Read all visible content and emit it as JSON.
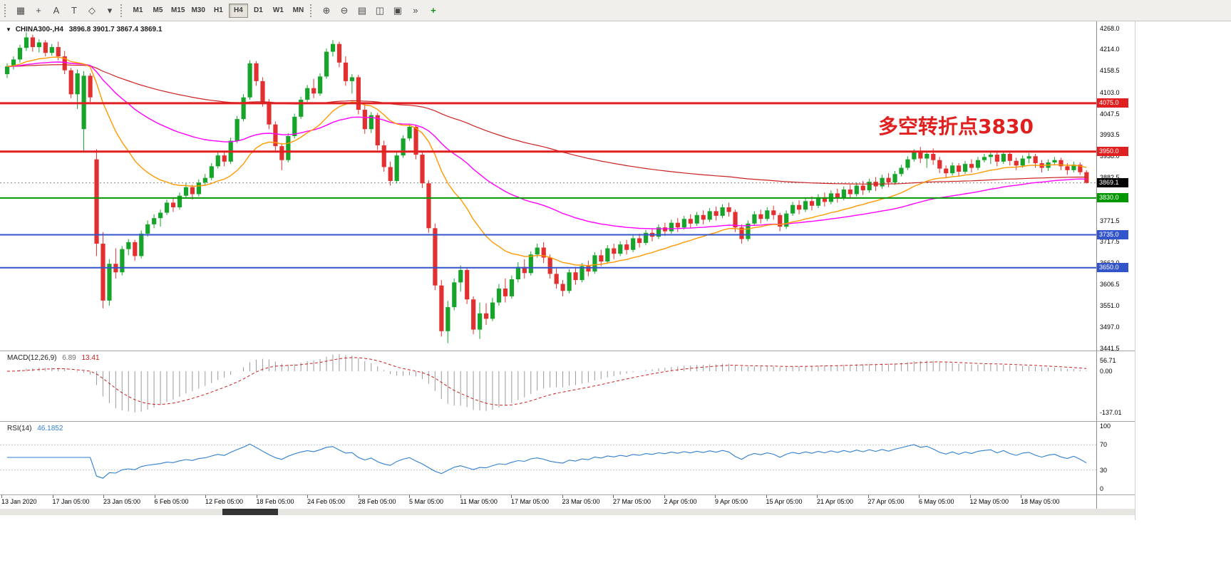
{
  "toolbar": {
    "left_icons": [
      {
        "name": "charts-menu-icon",
        "glyph": "▦"
      },
      {
        "name": "crosshair-icon",
        "glyph": "+"
      },
      {
        "name": "text-label-icon",
        "glyph": "A"
      },
      {
        "name": "text-tool-icon",
        "glyph": "T"
      },
      {
        "name": "shapes-icon",
        "glyph": "◇"
      },
      {
        "name": "shapes-dropdown-icon",
        "glyph": "▾"
      }
    ],
    "timeframes": [
      "M1",
      "M5",
      "M15",
      "M30",
      "H1",
      "H4",
      "D1",
      "W1",
      "MN"
    ],
    "active_timeframe": "H4",
    "right_icons": [
      {
        "name": "zoom-in-icon",
        "glyph": "⊕"
      },
      {
        "name": "zoom-out-icon",
        "glyph": "⊖"
      },
      {
        "name": "tile-windows-icon",
        "glyph": "▤"
      },
      {
        "name": "cascade-windows-icon",
        "glyph": "◫"
      },
      {
        "name": "arrange-windows-icon",
        "glyph": "▣"
      },
      {
        "name": "auto-scroll-icon",
        "glyph": "»"
      },
      {
        "name": "indicators-add-icon",
        "glyph": "+",
        "color": "#168f16"
      }
    ]
  },
  "window": {
    "dropdown_glyph": "▼",
    "symbol_title": "CHINA300-,H4",
    "ohlc_text": "3896.8 3901.7 3867.4 3869.1"
  },
  "annotation": {
    "text": "多空转折点3830",
    "color": "#e01f1f"
  },
  "macd": {
    "label": "MACD(12,26,9)",
    "value_main": "6.89",
    "value_signal": "13.41",
    "axis_labels": [
      "56.71",
      "0.00",
      "-137.01"
    ],
    "histogram_color": "#9a9a9a",
    "signal_color": "#cc2020"
  },
  "rsi": {
    "label": "RSI(14)",
    "value": "46.1852",
    "period": 14,
    "axis_labels": [
      "100",
      "70",
      "30",
      "0"
    ],
    "levels": [
      70,
      30
    ],
    "line_color": "#2f7fd0"
  },
  "chart_data": {
    "type": "candlestick",
    "symbol": "CHINA300-",
    "timeframe": "H4",
    "last_ohlc": {
      "open": 3896.8,
      "high": 3901.7,
      "low": 3867.4,
      "close": 3869.1
    },
    "price_min": 3441.5,
    "price_max": 4268.0,
    "price_axis_labels": [
      "4268.0",
      "4214.0",
      "4158.5",
      "4103.0",
      "4047.5",
      "3993.5",
      "3938.0",
      "3882.5",
      "3827.0",
      "3771.5",
      "3717.5",
      "3662.0",
      "3606.5",
      "3551.0",
      "3497.0",
      "3441.5"
    ],
    "time_labels": [
      "13 Jan 2020",
      "17 Jan 05:00",
      "23 Jan 05:00",
      "6 Feb 05:00",
      "12 Feb 05:00",
      "18 Feb 05:00",
      "24 Feb 05:00",
      "28 Feb 05:00",
      "5 Mar 05:00",
      "11 Mar 05:00",
      "17 Mar 05:00",
      "23 Mar 05:00",
      "27 Mar 05:00",
      "2 Apr 05:00",
      "9 Apr 05:00",
      "15 Apr 05:00",
      "21 Apr 05:00",
      "27 Apr 05:00",
      "6 May 05:00",
      "12 May 05:00",
      "18 May 05:00"
    ],
    "up_color": "#17a42a",
    "down_color": "#e23030",
    "levels": [
      {
        "price": 4075.0,
        "label": "4075.0",
        "color": "#e02020",
        "width": 3
      },
      {
        "price": 3950.0,
        "label": "3950.0",
        "color": "#e02020",
        "width": 3
      },
      {
        "price": 3830.0,
        "label": "3830.0",
        "color": "#009600",
        "width": 2
      },
      {
        "price": 3735.0,
        "label": "3735.0",
        "color": "#3355cc",
        "width": 2
      },
      {
        "price": 3650.0,
        "label": "3650.0",
        "color": "#3355cc",
        "width": 2
      }
    ],
    "current_price": {
      "value": 3869.1,
      "label": "3869.1",
      "badge_color": "#000000"
    },
    "moving_averages": [
      {
        "name": "ma-slow-red",
        "period": 150,
        "color": "#cc2222",
        "width": 1.2
      },
      {
        "name": "ma-mid-magenta",
        "period": 55,
        "color": "#ff00ff",
        "width": 1.4
      },
      {
        "name": "ma-fast-orange",
        "period": 21,
        "color": "#ff9900",
        "width": 1.4
      }
    ],
    "candles": [
      [
        4150,
        4178,
        4140,
        4170
      ],
      [
        4170,
        4196,
        4162,
        4188
      ],
      [
        4188,
        4226,
        4180,
        4218
      ],
      [
        4218,
        4258,
        4210,
        4245
      ],
      [
        4245,
        4252,
        4208,
        4220
      ],
      [
        4220,
        4240,
        4206,
        4232
      ],
      [
        4232,
        4238,
        4196,
        4205
      ],
      [
        4205,
        4228,
        4198,
        4220
      ],
      [
        4220,
        4234,
        4186,
        4196
      ],
      [
        4196,
        4210,
        4150,
        4160
      ],
      [
        4160,
        4166,
        4088,
        4098
      ],
      [
        4098,
        4162,
        4060,
        4152
      ],
      [
        4008,
        4158,
        3952,
        4146
      ],
      [
        4146,
        4152,
        4078,
        4090
      ],
      [
        3930,
        3956,
        3680,
        3712
      ],
      [
        3712,
        3742,
        3545,
        3565
      ],
      [
        3565,
        3672,
        3552,
        3660
      ],
      [
        3660,
        3700,
        3622,
        3638
      ],
      [
        3638,
        3706,
        3630,
        3698
      ],
      [
        3698,
        3724,
        3682,
        3716
      ],
      [
        3716,
        3722,
        3668,
        3680
      ],
      [
        3680,
        3746,
        3674,
        3738
      ],
      [
        3738,
        3772,
        3730,
        3762
      ],
      [
        3762,
        3788,
        3752,
        3778
      ],
      [
        3778,
        3800,
        3756,
        3792
      ],
      [
        3792,
        3826,
        3786,
        3818
      ],
      [
        3818,
        3832,
        3794,
        3806
      ],
      [
        3806,
        3844,
        3800,
        3836
      ],
      [
        3836,
        3868,
        3830,
        3858
      ],
      [
        3858,
        3864,
        3826,
        3840
      ],
      [
        3840,
        3878,
        3834,
        3870
      ],
      [
        3870,
        3892,
        3862,
        3882
      ],
      [
        3882,
        3920,
        3876,
        3912
      ],
      [
        3912,
        3948,
        3906,
        3940
      ],
      [
        3940,
        3952,
        3912,
        3924
      ],
      [
        3924,
        3986,
        3918,
        3978
      ],
      [
        3978,
        4042,
        3972,
        4034
      ],
      [
        4034,
        4098,
        4028,
        4090
      ],
      [
        4090,
        4186,
        4084,
        4178
      ],
      [
        4178,
        4184,
        4120,
        4132
      ],
      [
        4132,
        4142,
        4066,
        4078
      ],
      [
        4078,
        4086,
        4008,
        4020
      ],
      [
        4020,
        4028,
        3952,
        3964
      ],
      [
        3964,
        3972,
        3902,
        3928
      ],
      [
        3928,
        3998,
        3922,
        3990
      ],
      [
        3990,
        4048,
        3984,
        4040
      ],
      [
        4040,
        4092,
        4034,
        4084
      ],
      [
        4084,
        4122,
        4078,
        4114
      ],
      [
        4114,
        4138,
        4088,
        4100
      ],
      [
        4100,
        4152,
        4094,
        4144
      ],
      [
        4144,
        4216,
        4138,
        4208
      ],
      [
        4208,
        4238,
        4196,
        4228
      ],
      [
        4228,
        4234,
        4168,
        4180
      ],
      [
        4180,
        4196,
        4120,
        4132
      ],
      [
        4132,
        4150,
        4100,
        4142
      ],
      [
        4142,
        4148,
        4046,
        4058
      ],
      [
        4058,
        4072,
        3996,
        4008
      ],
      [
        4008,
        4052,
        3998,
        4044
      ],
      [
        4044,
        4050,
        3954,
        3966
      ],
      [
        3966,
        3978,
        3898,
        3910
      ],
      [
        3910,
        3924,
        3862,
        3874
      ],
      [
        3874,
        3948,
        3868,
        3940
      ],
      [
        3940,
        3992,
        3934,
        3984
      ],
      [
        3984,
        4022,
        3978,
        4014
      ],
      [
        4014,
        4020,
        3930,
        3942
      ],
      [
        3942,
        3950,
        3856,
        3868
      ],
      [
        3868,
        3876,
        3740,
        3752
      ],
      [
        3752,
        3764,
        3592,
        3604
      ],
      [
        3604,
        3618,
        3472,
        3486
      ],
      [
        3486,
        3564,
        3455,
        3548
      ],
      [
        3548,
        3622,
        3540,
        3612
      ],
      [
        3612,
        3656,
        3588,
        3644
      ],
      [
        3644,
        3650,
        3556,
        3568
      ],
      [
        3568,
        3576,
        3478,
        3490
      ],
      [
        3490,
        3560,
        3466,
        3532
      ],
      [
        3532,
        3558,
        3502,
        3518
      ],
      [
        3518,
        3572,
        3512,
        3560
      ],
      [
        3560,
        3608,
        3552,
        3596
      ],
      [
        3596,
        3622,
        3560,
        3576
      ],
      [
        3576,
        3630,
        3570,
        3620
      ],
      [
        3620,
        3664,
        3612,
        3652
      ],
      [
        3652,
        3672,
        3622,
        3636
      ],
      [
        3636,
        3692,
        3630,
        3684
      ],
      [
        3684,
        3712,
        3676,
        3702
      ],
      [
        3702,
        3716,
        3662,
        3676
      ],
      [
        3676,
        3684,
        3622,
        3634
      ],
      [
        3634,
        3648,
        3596,
        3608
      ],
      [
        3608,
        3618,
        3576,
        3590
      ],
      [
        3590,
        3646,
        3584,
        3638
      ],
      [
        3638,
        3652,
        3606,
        3618
      ],
      [
        3618,
        3662,
        3612,
        3654
      ],
      [
        3654,
        3668,
        3628,
        3640
      ],
      [
        3640,
        3690,
        3634,
        3682
      ],
      [
        3682,
        3696,
        3654,
        3666
      ],
      [
        3666,
        3708,
        3660,
        3700
      ],
      [
        3700,
        3712,
        3672,
        3686
      ],
      [
        3686,
        3718,
        3680,
        3710
      ],
      [
        3710,
        3722,
        3684,
        3696
      ],
      [
        3696,
        3734,
        3690,
        3726
      ],
      [
        3726,
        3738,
        3702,
        3714
      ],
      [
        3714,
        3748,
        3708,
        3740
      ],
      [
        3740,
        3752,
        3718,
        3730
      ],
      [
        3730,
        3762,
        3724,
        3754
      ],
      [
        3754,
        3766,
        3732,
        3744
      ],
      [
        3744,
        3774,
        3738,
        3766
      ],
      [
        3766,
        3778,
        3742,
        3754
      ],
      [
        3754,
        3784,
        3748,
        3776
      ],
      [
        3776,
        3788,
        3752,
        3764
      ],
      [
        3764,
        3794,
        3758,
        3786
      ],
      [
        3786,
        3798,
        3762,
        3774
      ],
      [
        3774,
        3804,
        3768,
        3796
      ],
      [
        3796,
        3808,
        3772,
        3784
      ],
      [
        3784,
        3814,
        3778,
        3806
      ],
      [
        3806,
        3818,
        3782,
        3794
      ],
      [
        3794,
        3800,
        3742,
        3754
      ],
      [
        3754,
        3762,
        3712,
        3724
      ],
      [
        3724,
        3772,
        3718,
        3764
      ],
      [
        3764,
        3796,
        3758,
        3788
      ],
      [
        3788,
        3800,
        3764,
        3776
      ],
      [
        3776,
        3806,
        3770,
        3798
      ],
      [
        3798,
        3810,
        3774,
        3786
      ],
      [
        3786,
        3792,
        3744,
        3756
      ],
      [
        3756,
        3798,
        3750,
        3790
      ],
      [
        3790,
        3820,
        3784,
        3812
      ],
      [
        3812,
        3824,
        3788,
        3800
      ],
      [
        3800,
        3830,
        3794,
        3822
      ],
      [
        3822,
        3834,
        3798,
        3810
      ],
      [
        3810,
        3840,
        3804,
        3832
      ],
      [
        3832,
        3844,
        3808,
        3820
      ],
      [
        3820,
        3850,
        3814,
        3842
      ],
      [
        3842,
        3854,
        3818,
        3830
      ],
      [
        3830,
        3860,
        3824,
        3852
      ],
      [
        3852,
        3864,
        3828,
        3840
      ],
      [
        3840,
        3870,
        3834,
        3862
      ],
      [
        3862,
        3874,
        3838,
        3850
      ],
      [
        3850,
        3880,
        3844,
        3872
      ],
      [
        3872,
        3884,
        3848,
        3860
      ],
      [
        3860,
        3890,
        3854,
        3882
      ],
      [
        3882,
        3894,
        3858,
        3870
      ],
      [
        3870,
        3900,
        3864,
        3892
      ],
      [
        3892,
        3916,
        3886,
        3908
      ],
      [
        3908,
        3938,
        3902,
        3930
      ],
      [
        3930,
        3956,
        3924,
        3948
      ],
      [
        3948,
        3962,
        3920,
        3932
      ],
      [
        3932,
        3952,
        3908,
        3944
      ],
      [
        3944,
        3958,
        3916,
        3928
      ],
      [
        3928,
        3936,
        3894,
        3906
      ],
      [
        3906,
        3914,
        3882,
        3894
      ],
      [
        3894,
        3922,
        3888,
        3914
      ],
      [
        3914,
        3920,
        3886,
        3898
      ],
      [
        3898,
        3926,
        3892,
        3918
      ],
      [
        3918,
        3930,
        3896,
        3908
      ],
      [
        3908,
        3936,
        3902,
        3928
      ],
      [
        3928,
        3944,
        3922,
        3936
      ],
      [
        3936,
        3950,
        3918,
        3942
      ],
      [
        3942,
        3948,
        3912,
        3924
      ],
      [
        3924,
        3952,
        3918,
        3944
      ],
      [
        3944,
        3950,
        3914,
        3926
      ],
      [
        3926,
        3934,
        3902,
        3914
      ],
      [
        3914,
        3940,
        3908,
        3932
      ],
      [
        3932,
        3946,
        3920,
        3938
      ],
      [
        3938,
        3944,
        3908,
        3920
      ],
      [
        3920,
        3928,
        3896,
        3908
      ],
      [
        3908,
        3930,
        3900,
        3922
      ],
      [
        3922,
        3936,
        3914,
        3928
      ],
      [
        3928,
        3934,
        3902,
        3912
      ],
      [
        3912,
        3920,
        3890,
        3902
      ],
      [
        3902,
        3924,
        3896,
        3916
      ],
      [
        3916,
        3922,
        3890,
        3896.8
      ],
      [
        3896.8,
        3901.7,
        3867.4,
        3869.1
      ]
    ]
  }
}
